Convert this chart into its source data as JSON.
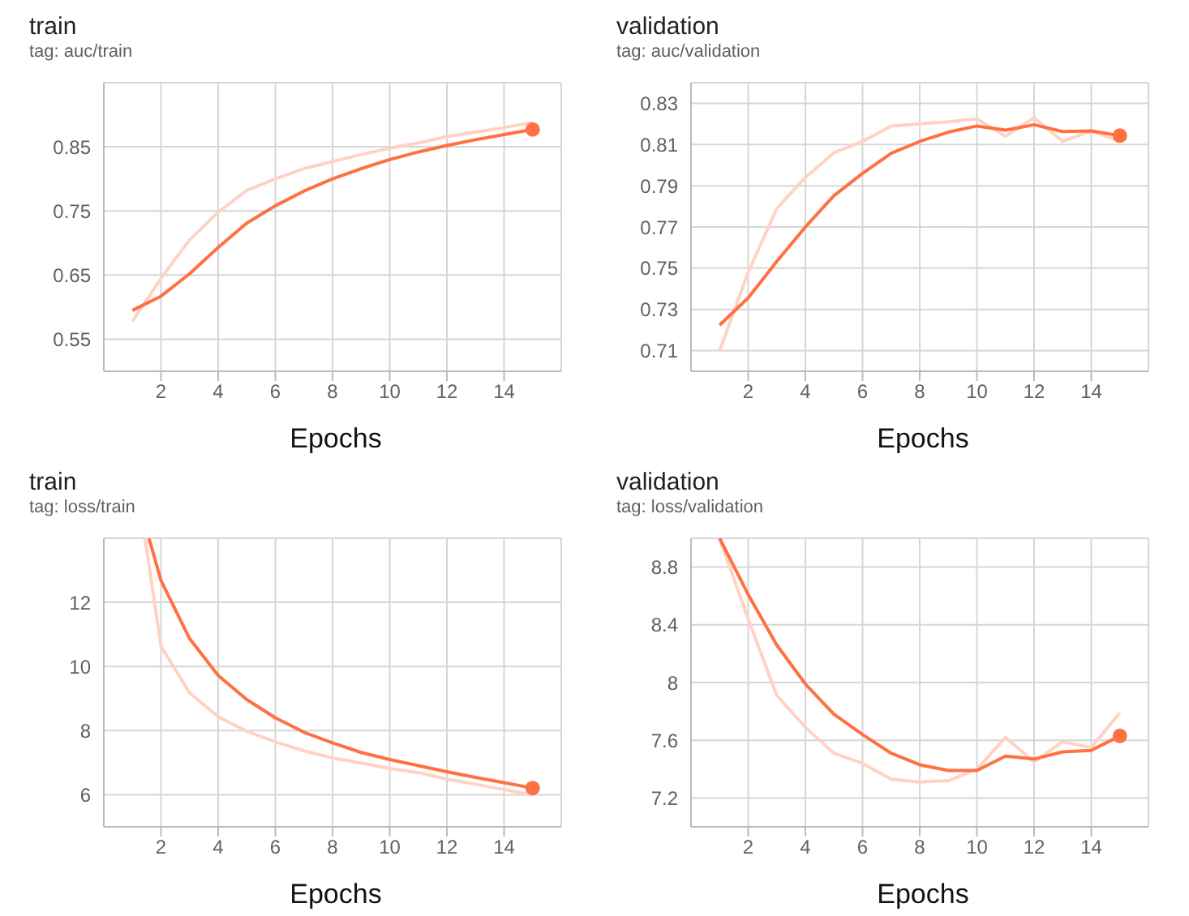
{
  "chart_data": [
    {
      "type": "line",
      "title": "train",
      "subtitle": "tag: auc/train",
      "xlabel": "Epochs",
      "x": [
        1,
        2,
        3,
        4,
        5,
        6,
        7,
        8,
        9,
        10,
        11,
        12,
        13,
        14,
        15
      ],
      "xlim": [
        0,
        16
      ],
      "xticks": [
        2,
        4,
        6,
        8,
        10,
        12,
        14
      ],
      "ylim": [
        0.5,
        0.95
      ],
      "yticks": [
        0.55,
        0.65,
        0.75,
        0.85
      ],
      "grid": true,
      "legend": false,
      "marker": "none",
      "line_style": "solid",
      "series": [
        {
          "color": "#ffd3c4",
          "values": [
            0.578,
            0.645,
            0.705,
            0.748,
            0.782,
            0.8,
            0.816,
            0.827,
            0.838,
            0.848,
            0.856,
            0.866,
            0.873,
            0.88,
            0.888
          ]
        },
        {
          "color": "#ff7043",
          "values": [
            0.595,
            0.617,
            0.652,
            0.693,
            0.731,
            0.758,
            0.781,
            0.8,
            0.816,
            0.83,
            0.842,
            0.852,
            0.861,
            0.869,
            0.877
          ]
        },
        {
          "type": "scatter",
          "color": "#ff7043",
          "x": [
            15
          ],
          "values": [
            0.877
          ],
          "marker": "circle"
        }
      ]
    },
    {
      "type": "line",
      "title": "validation",
      "subtitle": "tag: auc/validation",
      "xlabel": "Epochs",
      "x": [
        1,
        2,
        3,
        4,
        5,
        6,
        7,
        8,
        9,
        10,
        11,
        12,
        13,
        14,
        15
      ],
      "xlim": [
        0,
        16
      ],
      "xticks": [
        2,
        4,
        6,
        8,
        10,
        12,
        14
      ],
      "ylim": [
        0.7,
        0.84
      ],
      "yticks": [
        0.71,
        0.73,
        0.75,
        0.77,
        0.79,
        0.81,
        0.83
      ],
      "grid": true,
      "legend": false,
      "marker": "none",
      "line_style": "solid",
      "series": [
        {
          "color": "#ffd3c4",
          "values": [
            0.71,
            0.748,
            0.779,
            0.794,
            0.806,
            0.8115,
            0.819,
            0.82,
            0.821,
            0.8224,
            0.814,
            0.823,
            0.8115,
            0.8166,
            0.8115
          ]
        },
        {
          "color": "#ff7043",
          "values": [
            0.7224,
            0.7356,
            0.7533,
            0.77,
            0.7852,
            0.796,
            0.8057,
            0.8115,
            0.816,
            0.819,
            0.817,
            0.8196,
            0.8163,
            0.8166,
            0.8143
          ]
        },
        {
          "type": "scatter",
          "color": "#ff7043",
          "x": [
            15
          ],
          "values": [
            0.8143
          ],
          "marker": "circle"
        }
      ]
    },
    {
      "type": "line",
      "title": "train",
      "subtitle": "tag: loss/train",
      "xlabel": "Epochs",
      "xlim": [
        0,
        16
      ],
      "xticks": [
        2,
        4,
        6,
        8,
        10,
        12,
        14
      ],
      "ylim": [
        5,
        14
      ],
      "yticks": [
        6,
        8,
        10,
        12
      ],
      "grid": true,
      "legend": false,
      "marker": "none",
      "line_style": "solid",
      "series": [
        {
          "color": "#ffd3c4",
          "x": [
            1.44,
            2,
            3,
            4,
            5,
            6,
            7,
            8,
            9,
            10,
            11,
            12,
            13,
            14,
            15
          ],
          "values": [
            14,
            10.63,
            9.18,
            8.43,
            7.98,
            7.65,
            7.37,
            7.15,
            6.99,
            6.82,
            6.69,
            6.49,
            6.33,
            6.16,
            6.0
          ]
        },
        {
          "color": "#ff7043",
          "x": [
            1.58,
            2,
            3,
            4,
            5,
            6,
            7,
            8,
            9,
            10,
            11,
            12,
            13,
            14,
            15
          ],
          "values": [
            14,
            12.68,
            10.87,
            9.72,
            8.97,
            8.4,
            7.95,
            7.62,
            7.32,
            7.1,
            6.91,
            6.72,
            6.54,
            6.38,
            6.21
          ]
        },
        {
          "type": "scatter",
          "color": "#ff7043",
          "x": [
            15
          ],
          "values": [
            6.21
          ],
          "marker": "circle"
        }
      ]
    },
    {
      "type": "line",
      "title": "validation",
      "subtitle": "tag: loss/validation",
      "xlabel": "Epochs",
      "x": [
        1,
        2,
        3,
        4,
        5,
        6,
        7,
        8,
        9,
        10,
        11,
        12,
        13,
        14,
        15
      ],
      "xlim": [
        0,
        16
      ],
      "xticks": [
        2,
        4,
        6,
        8,
        10,
        12,
        14
      ],
      "ylim": [
        7,
        9
      ],
      "yticks": [
        7.2,
        7.6,
        8,
        8.4,
        8.8
      ],
      "grid": true,
      "legend": false,
      "marker": "none",
      "line_style": "solid",
      "series": [
        {
          "color": "#ffd3c4",
          "values": [
            9.0,
            8.44,
            7.91,
            7.69,
            7.51,
            7.44,
            7.33,
            7.31,
            7.32,
            7.4,
            7.62,
            7.45,
            7.59,
            7.55,
            7.79
          ]
        },
        {
          "color": "#ff7043",
          "values": [
            9.0,
            8.61,
            8.26,
            7.99,
            7.78,
            7.64,
            7.51,
            7.43,
            7.39,
            7.39,
            7.49,
            7.47,
            7.52,
            7.53,
            7.63
          ]
        },
        {
          "type": "scatter",
          "color": "#ff7043",
          "x": [
            15
          ],
          "values": [
            7.63
          ],
          "marker": "circle"
        }
      ]
    }
  ]
}
